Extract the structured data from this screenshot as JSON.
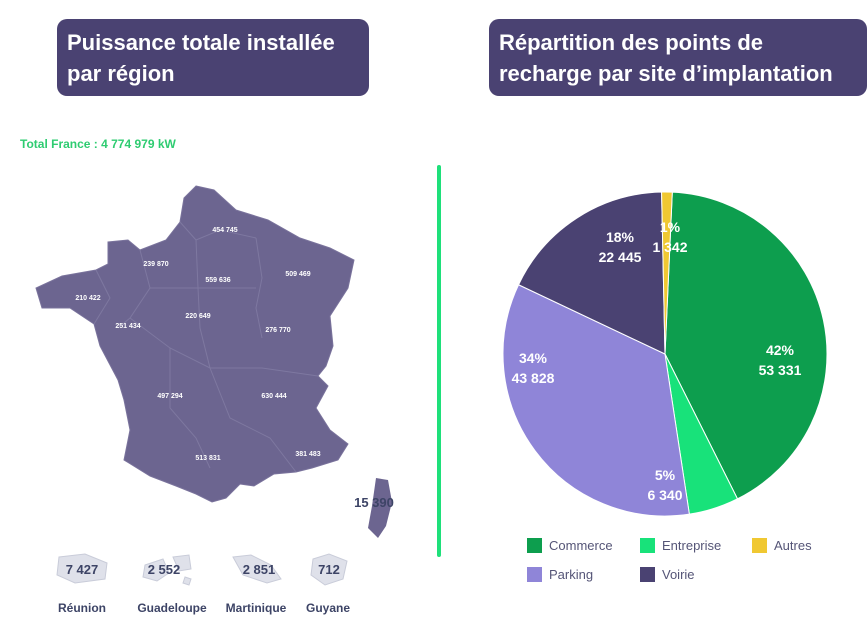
{
  "titles": {
    "left": "Puissance totale installée par région",
    "right": "Répartition des points de recharge par site d’implantation"
  },
  "total_text": "Total France : 4 774 979 kW",
  "colors": {
    "map_fill": "#6c6590",
    "title_bg": "#4a4272",
    "accent_green": "#1ee07a"
  },
  "regions": [
    {
      "value": "454 745"
    },
    {
      "value": "239 870"
    },
    {
      "value": "559 636"
    },
    {
      "value": "509 469"
    },
    {
      "value": "210 422"
    },
    {
      "value": "251 434"
    },
    {
      "value": "220 649"
    },
    {
      "value": "276 770"
    },
    {
      "value": "497 294"
    },
    {
      "value": "630 444"
    },
    {
      "value": "513 831"
    },
    {
      "value": "381 483"
    }
  ],
  "corsica": "15 390",
  "overseas": [
    {
      "value": "7 427",
      "name": "Réunion"
    },
    {
      "value": "2 552",
      "name": "Guadeloupe"
    },
    {
      "value": "2 851",
      "name": "Martinique"
    },
    {
      "value": "712",
      "name": "Guyane"
    }
  ],
  "chart_data": {
    "type": "pie",
    "title": "Répartition des points de recharge par site d’implantation",
    "slices": [
      {
        "label": "Commerce",
        "value": 53331,
        "pct": "42%",
        "value_label": "53 331",
        "color": "#0d9e4e"
      },
      {
        "label": "Entreprise",
        "value": 6340,
        "pct": "5%",
        "value_label": "6 340",
        "color": "#18e27a"
      },
      {
        "label": "Parking",
        "value": 43828,
        "pct": "34%",
        "value_label": "43 828",
        "color": "#8f85d8"
      },
      {
        "label": "Voirie",
        "value": 22445,
        "pct": "18%",
        "value_label": "22 445",
        "color": "#4a4272"
      },
      {
        "label": "Autres",
        "value": 1342,
        "pct": "1%",
        "value_label": "1 342",
        "color": "#f0c832"
      }
    ],
    "legend": [
      {
        "label": "Commerce",
        "color": "#0d9e4e"
      },
      {
        "label": "Entreprise",
        "color": "#18e27a"
      },
      {
        "label": "Autres",
        "color": "#f0c832"
      },
      {
        "label": "Parking",
        "color": "#8f85d8"
      },
      {
        "label": "Voirie",
        "color": "#4a4272"
      }
    ],
    "legend_position": "bottom"
  }
}
